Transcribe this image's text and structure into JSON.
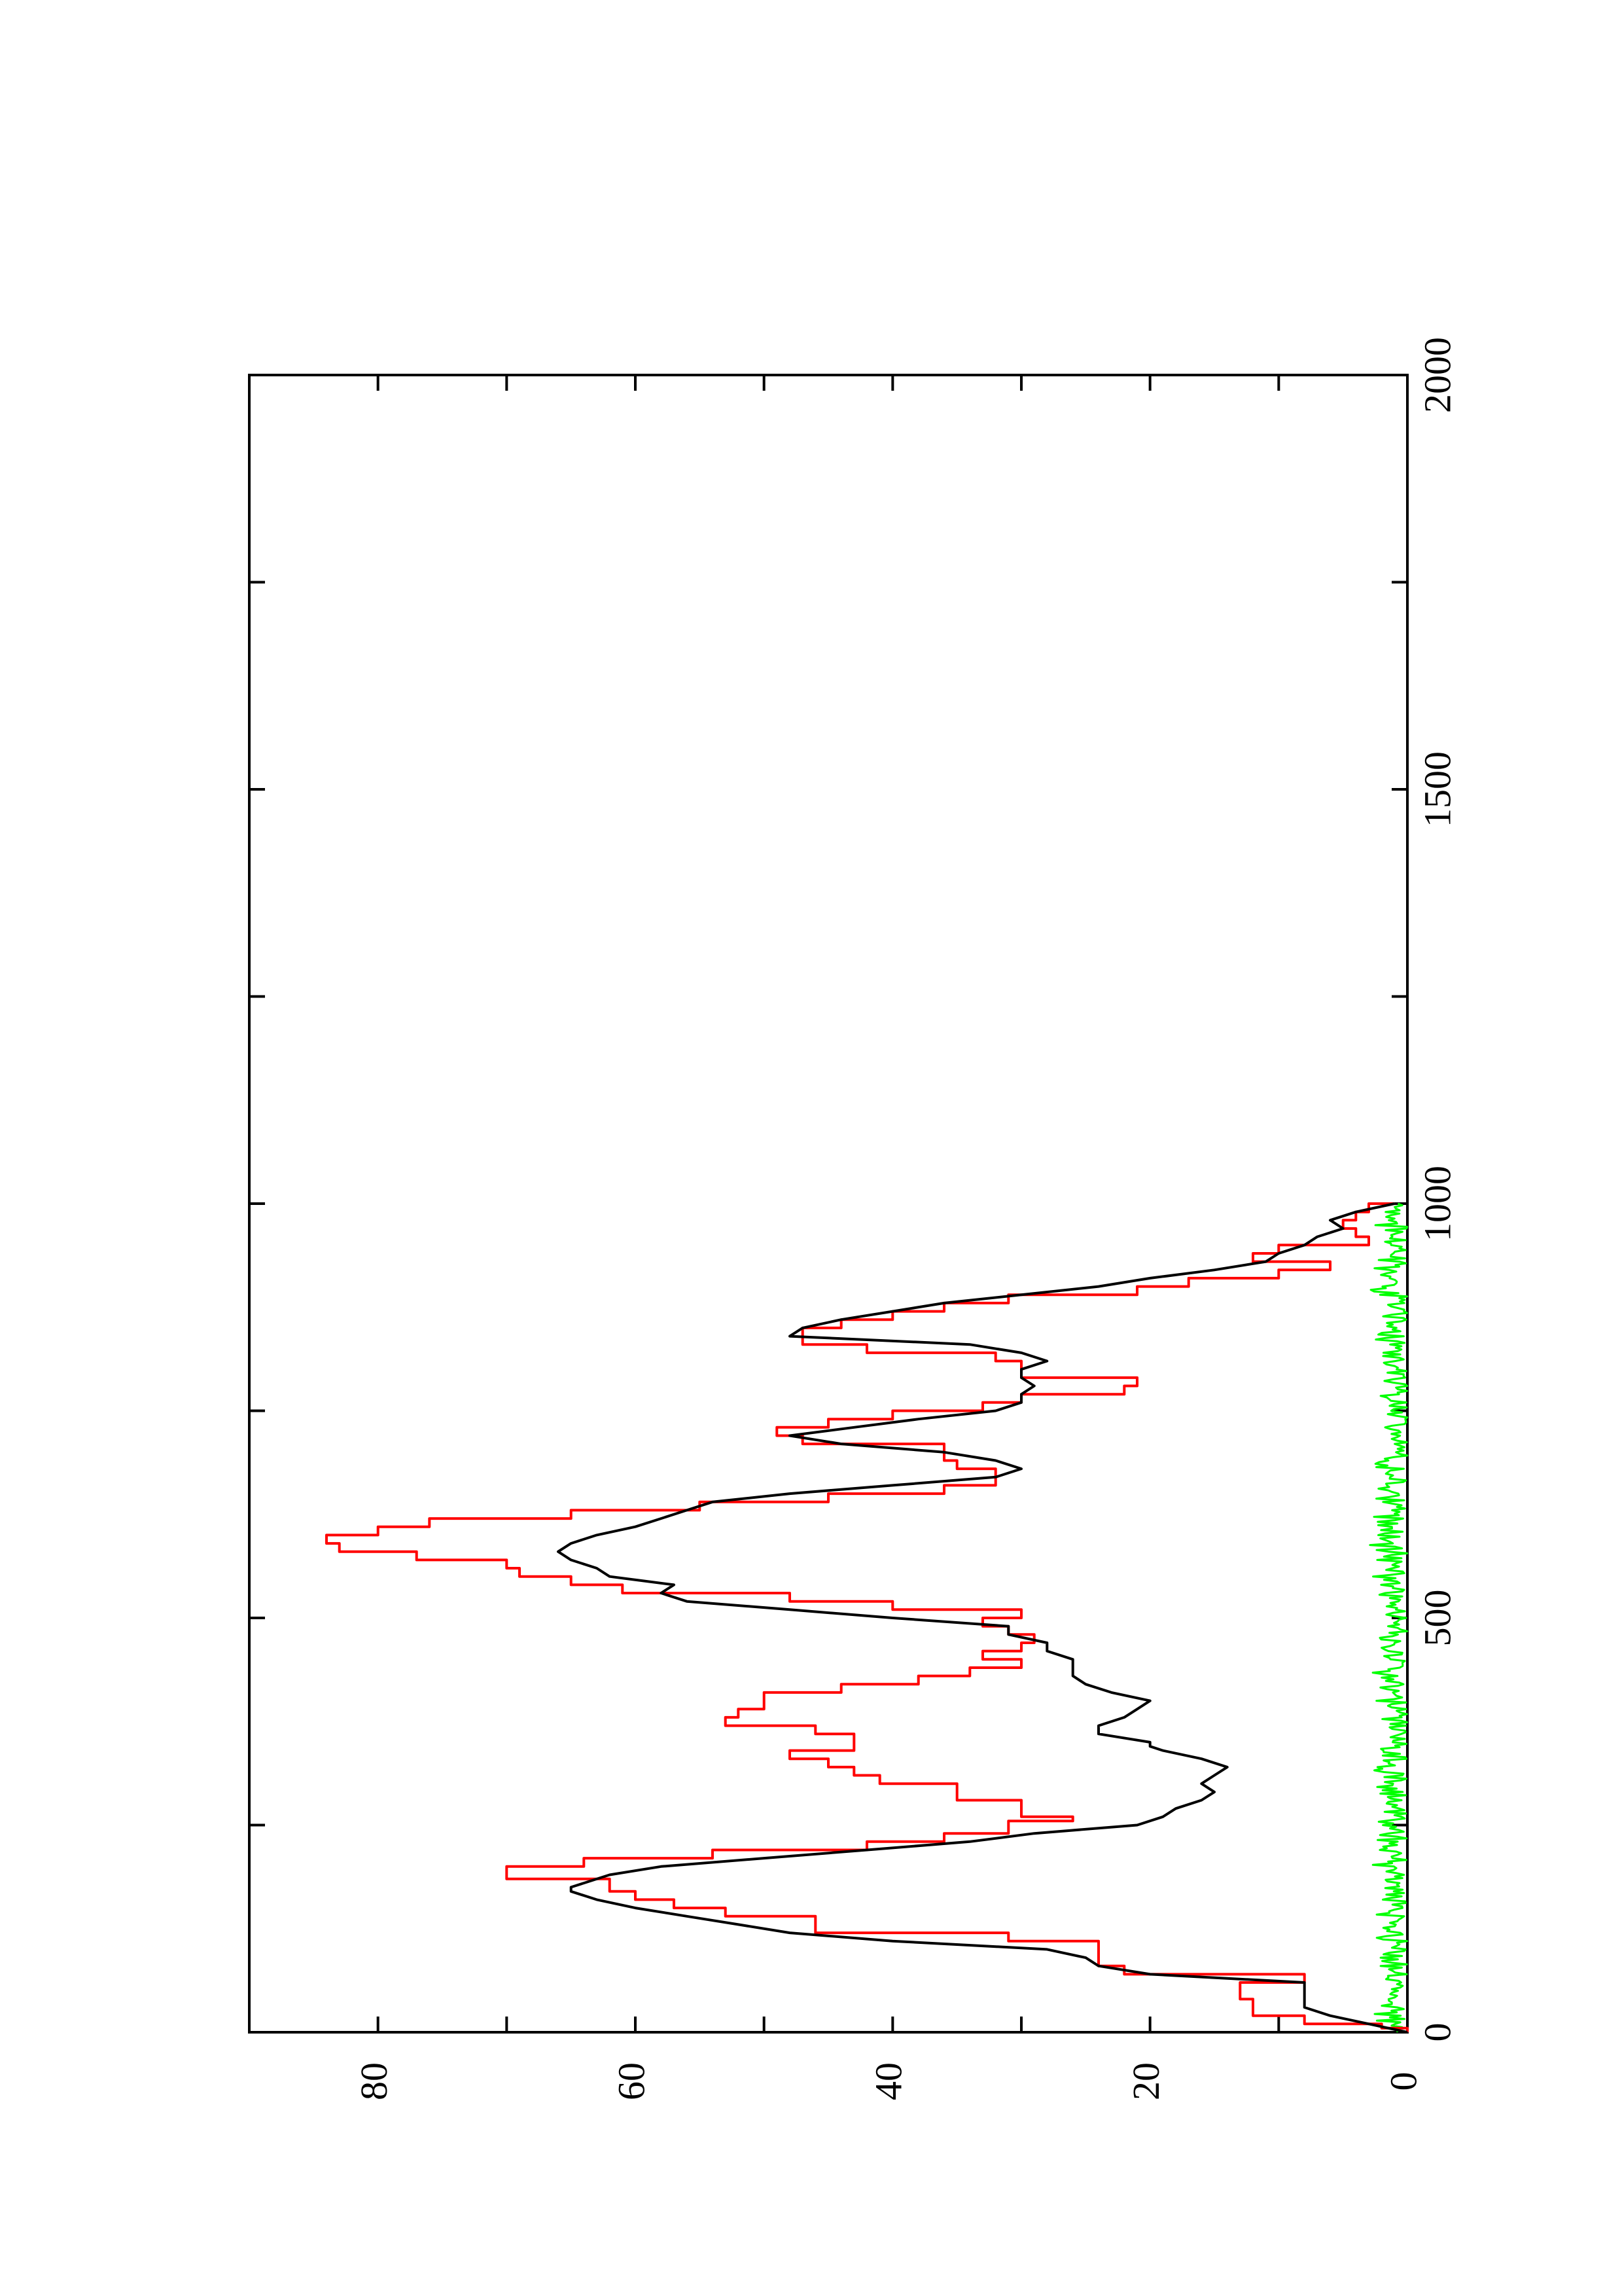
{
  "chart_data": {
    "type": "line",
    "orientation": "rotated-90-ccw",
    "title": "",
    "xlabel": "",
    "ylabel": "",
    "xlim": [
      0,
      2000
    ],
    "ylim": [
      0,
      90
    ],
    "x_ticks": [
      0,
      500,
      1000,
      1500,
      2000
    ],
    "x_tick_labels": [
      "0",
      "500",
      "1000",
      "1500",
      "2000"
    ],
    "x_minor_ticks": [
      250,
      750,
      1250,
      1750
    ],
    "y_ticks": [
      0,
      20,
      40,
      60,
      80
    ],
    "y_tick_labels": [
      "0",
      "20",
      "40",
      "60",
      "80"
    ],
    "y_minor_ticks": [
      10,
      30,
      50,
      70
    ],
    "grid": false,
    "legend": "none",
    "series": [
      {
        "color": "#000000",
        "style": "line",
        "x": [
          0,
          10,
          20,
          30,
          45,
          60,
          70,
          80,
          90,
          100,
          110,
          120,
          130,
          140,
          150,
          160,
          170,
          175,
          180,
          190,
          200,
          210,
          220,
          230,
          240,
          250,
          260,
          270,
          280,
          290,
          300,
          310,
          320,
          330,
          340,
          345,
          350,
          360,
          370,
          380,
          390,
          400,
          410,
          420,
          430,
          440,
          450,
          460,
          470,
          480,
          490,
          500,
          510,
          520,
          530,
          540,
          550,
          560,
          570,
          580,
          590,
          600,
          610,
          620,
          630,
          640,
          650,
          660,
          670,
          680,
          690,
          700,
          710,
          720,
          730,
          740,
          750,
          760,
          770,
          780,
          790,
          800,
          810,
          820,
          830,
          840,
          850,
          860,
          870,
          880,
          890,
          900,
          910,
          920,
          930,
          940,
          950,
          960,
          970,
          980,
          990,
          1000
        ],
        "y": [
          0,
          3,
          6,
          8,
          8,
          8,
          20,
          24,
          25,
          28,
          40,
          48,
          52,
          56,
          60,
          63,
          65,
          65,
          64,
          62,
          58,
          50,
          42,
          34,
          29,
          21,
          19,
          18,
          16,
          15,
          16,
          15,
          14,
          16,
          19,
          20,
          20,
          24,
          24,
          22,
          21,
          20,
          23,
          25,
          26,
          26,
          26,
          28,
          28,
          31,
          31,
          40,
          48,
          56,
          58,
          57,
          62,
          63,
          65,
          66,
          65,
          63,
          60,
          58,
          56,
          54,
          48,
          40,
          32,
          30,
          32,
          36,
          44,
          48,
          43,
          38,
          32,
          30,
          30,
          29,
          30,
          30,
          28,
          30,
          34,
          48,
          47,
          44,
          40,
          36,
          30,
          24,
          20,
          15,
          11,
          10,
          8,
          7,
          5,
          6,
          4,
          1
        ]
      },
      {
        "color": "#ff0000",
        "style": "step",
        "x": [
          0,
          5,
          10,
          20,
          30,
          40,
          60,
          70,
          80,
          100,
          110,
          120,
          140,
          150,
          160,
          170,
          185,
          200,
          210,
          220,
          230,
          240,
          255,
          260,
          270,
          280,
          290,
          300,
          310,
          320,
          330,
          340,
          350,
          360,
          370,
          380,
          390,
          410,
          420,
          430,
          440,
          450,
          460,
          470,
          480,
          490,
          500,
          510,
          520,
          530,
          540,
          550,
          560,
          570,
          580,
          590,
          600,
          610,
          620,
          630,
          640,
          650,
          660,
          670,
          680,
          690,
          700,
          710,
          720,
          730,
          740,
          750,
          760,
          770,
          780,
          790,
          800,
          810,
          820,
          830,
          840,
          850,
          860,
          870,
          880,
          890,
          900,
          910,
          920,
          930,
          940,
          950,
          960,
          970,
          980,
          990,
          1000
        ],
        "y": [
          0,
          2,
          8,
          12,
          12,
          13,
          8,
          22,
          24,
          24,
          31,
          46,
          53,
          57,
          60,
          62,
          70,
          64,
          54,
          42,
          36,
          31,
          26,
          30,
          30,
          35,
          35,
          41,
          43,
          45,
          48,
          43,
          43,
          46,
          53,
          52,
          50,
          44,
          38,
          34,
          30,
          33,
          30,
          29,
          31,
          33,
          30,
          40,
          48,
          61,
          65,
          69,
          70,
          77,
          83,
          84,
          80,
          76,
          65,
          55,
          45,
          36,
          32,
          32,
          35,
          36,
          36,
          47,
          49,
          45,
          40,
          33,
          30,
          22,
          21,
          30,
          30,
          32,
          42,
          47,
          47,
          44,
          40,
          36,
          31,
          21,
          17,
          10,
          6,
          12,
          10,
          3,
          4,
          5,
          4,
          3,
          1
        ]
      },
      {
        "color": "#00ff00",
        "style": "noise",
        "x_range": [
          0,
          1000
        ],
        "y_range": [
          0,
          3
        ]
      }
    ]
  }
}
